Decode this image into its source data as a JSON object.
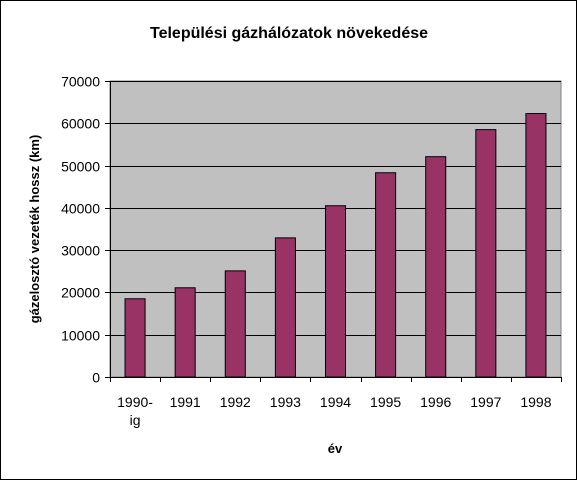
{
  "chart_data": {
    "type": "bar",
    "title": "Települési gázhálózatok növekedése",
    "xlabel": "év",
    "ylabel": "gázelosztó vezeték hossz (km)",
    "categories": [
      [
        "1990-",
        "ig"
      ],
      [
        "1991"
      ],
      [
        "1992"
      ],
      [
        "1993"
      ],
      [
        "1994"
      ],
      [
        "1995"
      ],
      [
        "1996"
      ],
      [
        "1997"
      ],
      [
        "1998"
      ]
    ],
    "values": [
      18500,
      21100,
      25100,
      32900,
      40500,
      48300,
      52100,
      58500,
      62300
    ],
    "ylim": [
      0,
      70000
    ],
    "yticks": [
      0,
      10000,
      20000,
      30000,
      40000,
      50000,
      60000,
      70000
    ],
    "grid": true,
    "legend": "none",
    "colors": {
      "bar": "#993366",
      "plot_background": "#c0c0c0",
      "gridline": "#000000"
    }
  }
}
